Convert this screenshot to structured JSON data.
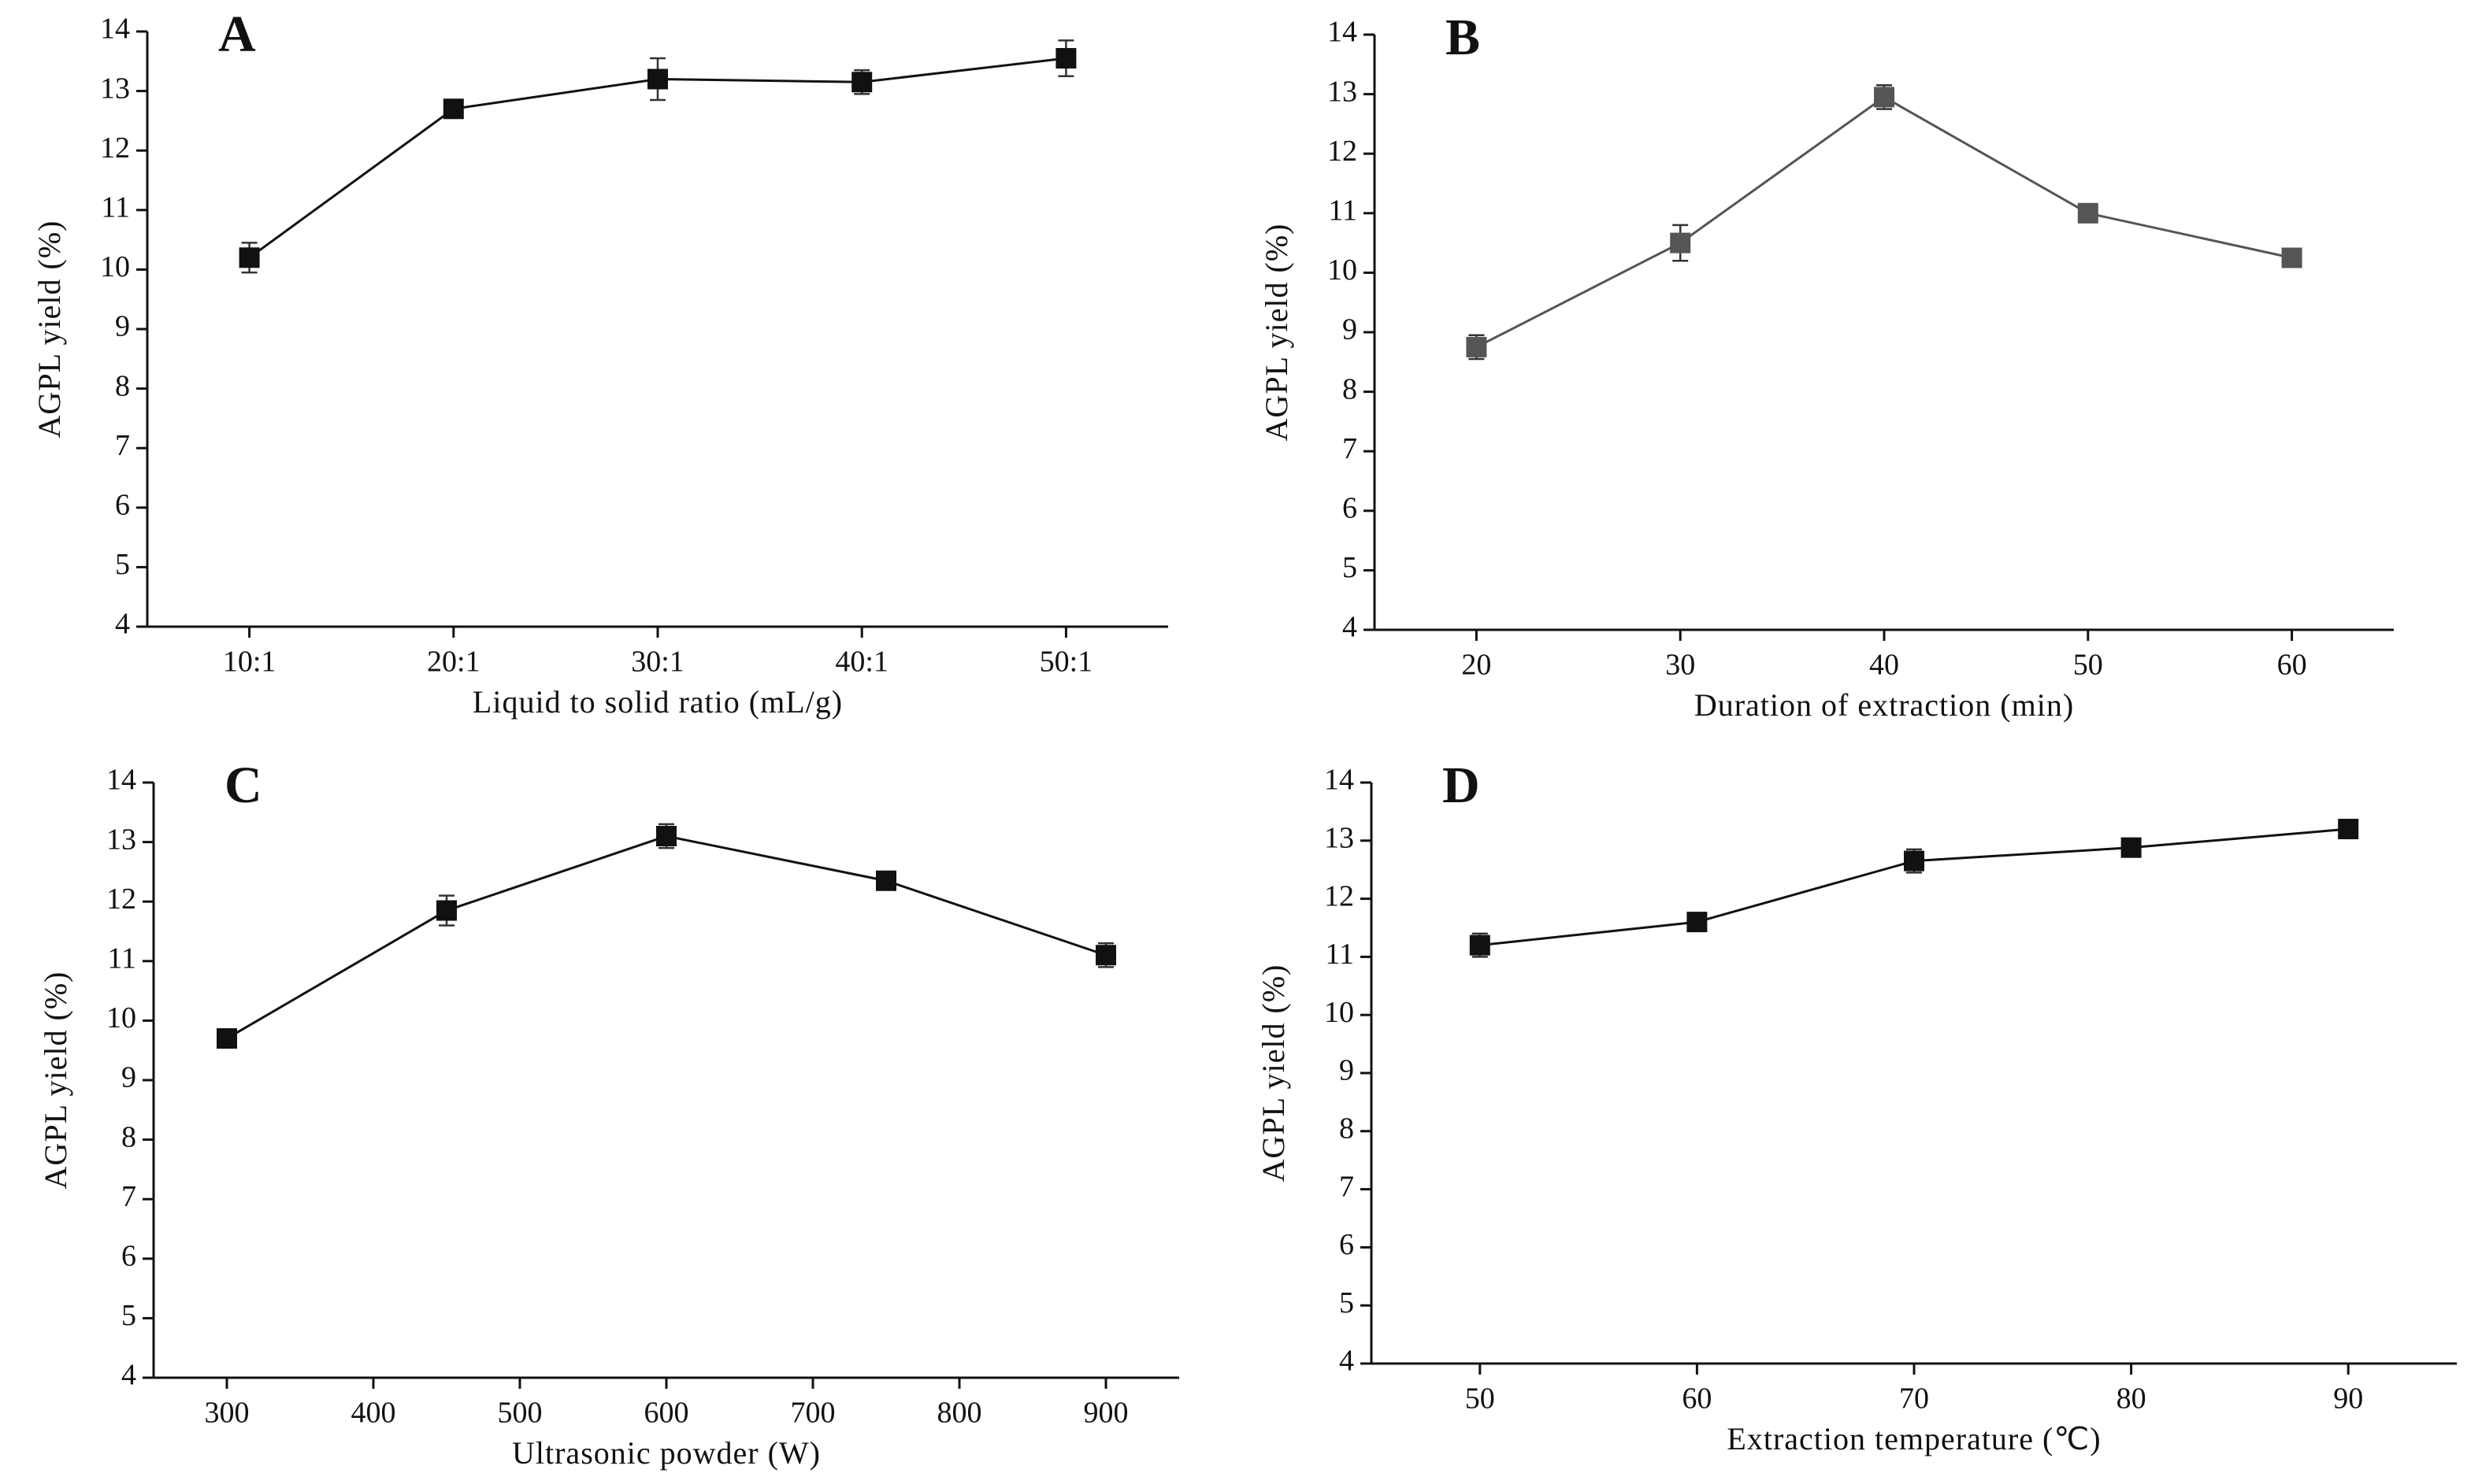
{
  "chart_data": [
    {
      "type": "line",
      "label": "A",
      "xlabel": "Liquid to solid ratio (mL/g)",
      "ylabel": "AGPL yield (%)",
      "categories": [
        "10:1",
        "20:1",
        "30:1",
        "40:1",
        "50:1"
      ],
      "values": [
        10.2,
        12.7,
        13.2,
        13.15,
        13.55
      ],
      "errors": [
        0.25,
        0.15,
        0.35,
        0.2,
        0.3
      ],
      "color": "#111111",
      "ylim": [
        4,
        14
      ],
      "yticks": [
        4,
        5,
        6,
        7,
        8,
        9,
        10,
        11,
        12,
        13,
        14
      ]
    },
    {
      "type": "line",
      "label": "B",
      "xlabel": "Duration of extraction (min)",
      "ylabel": "AGPL yield (%)",
      "x": [
        20,
        30,
        40,
        50,
        60
      ],
      "xlim": [
        15,
        65
      ],
      "xticks": [
        20,
        30,
        40,
        50,
        60
      ],
      "values": [
        8.75,
        10.5,
        12.95,
        11.0,
        10.25
      ],
      "errors": [
        0.2,
        0.3,
        0.2,
        0.1,
        0.15
      ],
      "color": "#555555",
      "ylim": [
        4,
        14
      ],
      "yticks": [
        4,
        5,
        6,
        7,
        8,
        9,
        10,
        11,
        12,
        13,
        14
      ]
    },
    {
      "type": "line",
      "label": "C",
      "xlabel": "Ultrasonic powder (W)",
      "ylabel": "AGPL yield (%)",
      "x": [
        300,
        450,
        600,
        750,
        900
      ],
      "xlim": [
        250,
        950
      ],
      "xticks": [
        300,
        400,
        500,
        600,
        700,
        800,
        900
      ],
      "values": [
        9.7,
        11.85,
        13.1,
        12.35,
        11.1
      ],
      "errors": [
        0.15,
        0.25,
        0.2,
        0.15,
        0.2
      ],
      "color": "#111111",
      "ylim": [
        4,
        14
      ],
      "yticks": [
        4,
        5,
        6,
        7,
        8,
        9,
        10,
        11,
        12,
        13,
        14
      ]
    },
    {
      "type": "line",
      "label": "D",
      "xlabel": "Extraction temperature (℃)",
      "ylabel": "AGPL yield (%)",
      "x": [
        50,
        60,
        70,
        80,
        90
      ],
      "xlim": [
        45,
        95
      ],
      "xticks": [
        50,
        60,
        70,
        80,
        90
      ],
      "values": [
        11.2,
        11.6,
        12.65,
        12.88,
        13.2
      ],
      "errors": [
        0.2,
        0.12,
        0.2,
        0.1,
        0.15
      ],
      "color": "#111111",
      "ylim": [
        4,
        14
      ],
      "yticks": [
        4,
        5,
        6,
        7,
        8,
        9,
        10,
        11,
        12,
        13,
        14
      ]
    }
  ]
}
